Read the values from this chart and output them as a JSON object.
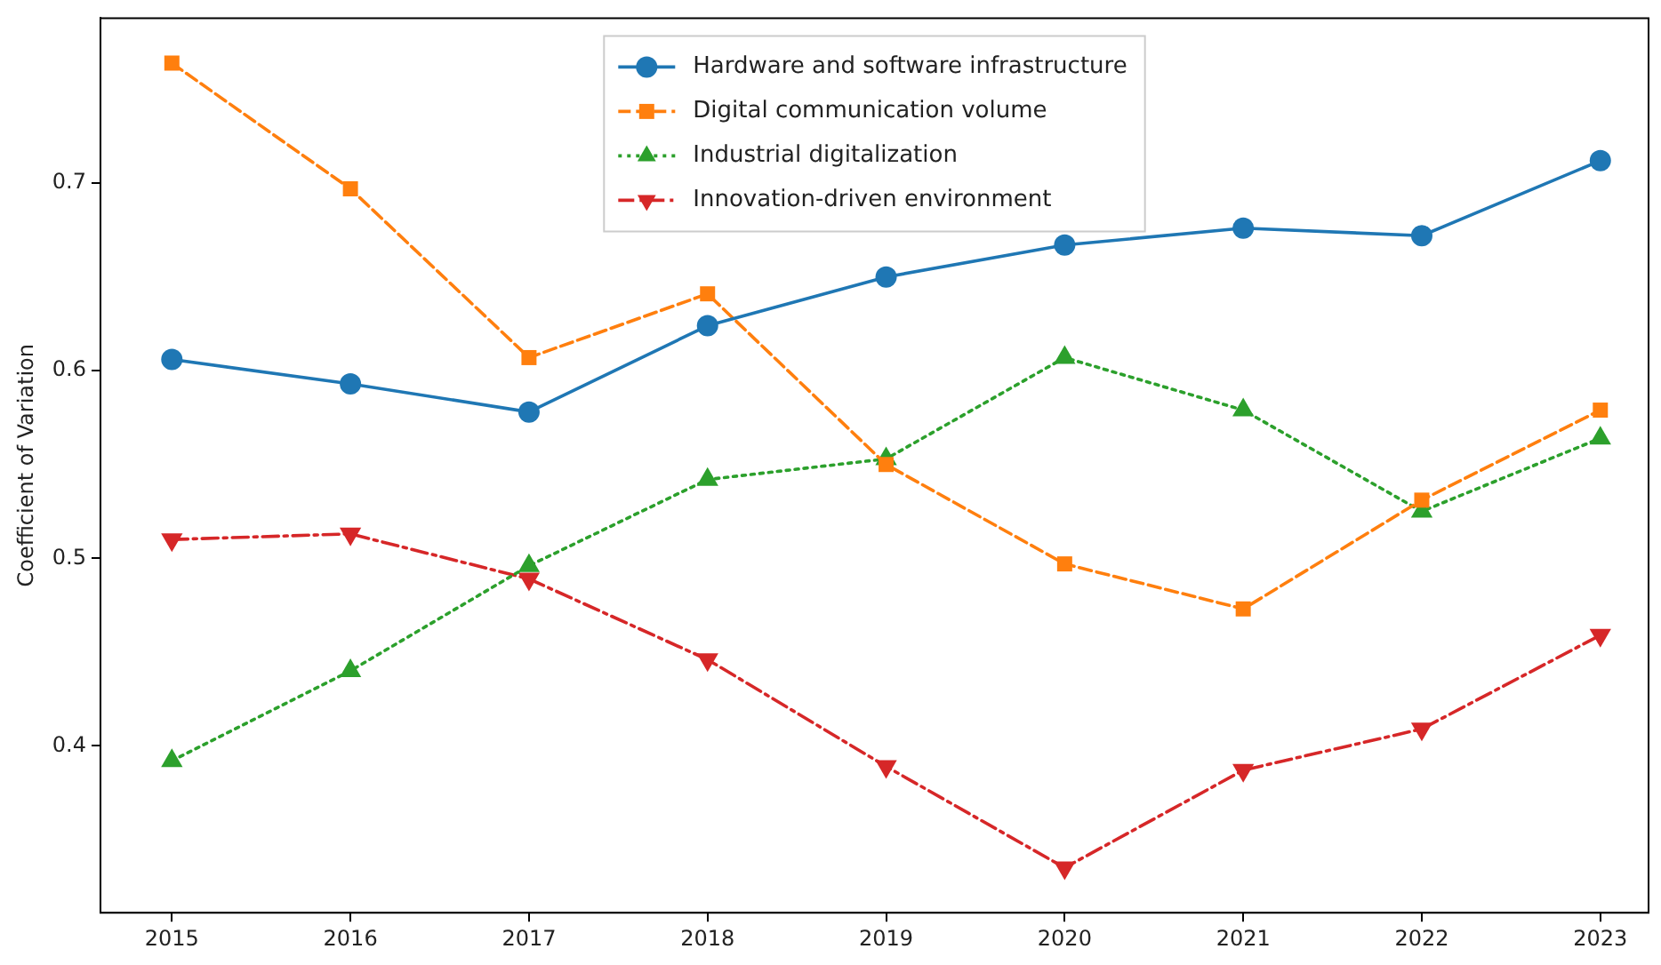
{
  "chart_data": {
    "type": "line",
    "ylabel": "Coefficient of Variation",
    "x": [
      2015,
      2016,
      2017,
      2018,
      2019,
      2020,
      2021,
      2022,
      2023
    ],
    "xlim": [
      2014.6,
      2023.27
    ],
    "xticks": [
      2015,
      2016,
      2017,
      2018,
      2019,
      2020,
      2021,
      2022,
      2023
    ],
    "ylim": [
      0.311,
      0.788
    ],
    "yticks": [
      0.4,
      0.5,
      0.6,
      0.7
    ],
    "grid": false,
    "legend": "top",
    "series": [
      {
        "name": "Hardware and software infrastructure",
        "color": "#1f77b4",
        "marker": "circle",
        "line_style": "solid",
        "values": [
          0.606,
          0.593,
          0.578,
          0.624,
          0.65,
          0.667,
          0.676,
          0.672,
          0.712
        ]
      },
      {
        "name": "Digital communication volume",
        "color": "#ff7f0e",
        "marker": "square",
        "line_style": "dashed",
        "values": [
          0.764,
          0.697,
          0.607,
          0.641,
          0.55,
          0.497,
          0.473,
          0.531,
          0.579
        ]
      },
      {
        "name": "Industrial digitalization",
        "color": "#2ca02c",
        "marker": "triangle",
        "line_style": "dotted",
        "values": [
          0.392,
          0.44,
          0.496,
          0.542,
          0.553,
          0.607,
          0.579,
          0.525,
          0.564
        ]
      },
      {
        "name": "Innovation-driven environment",
        "color": "#d62728",
        "marker": "triangle_down",
        "line_style": "dashdot",
        "values": [
          0.51,
          0.513,
          0.489,
          0.446,
          0.389,
          0.335,
          0.387,
          0.409,
          0.459
        ]
      }
    ]
  }
}
